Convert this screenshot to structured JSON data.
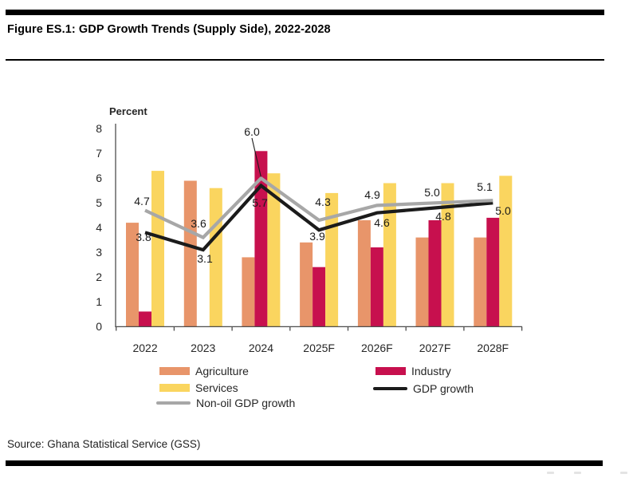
{
  "page": {
    "title": "Figure ES.1: GDP Growth Trends (Supply Side), 2022-2028",
    "source": "Source: Ghana Statistical Service (GSS)"
  },
  "chart_data": {
    "type": "bar",
    "subtype": "grouped-bars-with-overlaid-lines",
    "title": "GDP Growth Trends (Supply Side), 2022-2028",
    "axis_unit_label": "Percent",
    "categories": [
      "2022",
      "2023",
      "2024",
      "2025F",
      "2026F",
      "2027F",
      "2028F"
    ],
    "ylim": [
      0,
      8
    ],
    "y_ticks": [
      "0",
      "1",
      "2",
      "3",
      "4",
      "5",
      "6",
      "7",
      "8"
    ],
    "grid": false,
    "bar_series": [
      {
        "name": "Agriculture",
        "color": "#E8956A",
        "values": [
          4.2,
          5.9,
          2.8,
          3.4,
          4.3,
          3.6,
          3.6
        ]
      },
      {
        "name": "Industry",
        "color": "#C7104E",
        "values": [
          0.6,
          null,
          7.1,
          2.4,
          3.2,
          4.3,
          4.4
        ]
      },
      {
        "name": "Services",
        "color": "#FAD55F",
        "values": [
          6.3,
          5.6,
          6.2,
          5.4,
          5.8,
          5.8,
          6.1
        ]
      }
    ],
    "line_series": [
      {
        "name": "GDP growth",
        "color": "#1B1B1B",
        "values": [
          3.8,
          3.1,
          5.7,
          3.9,
          4.6,
          4.8,
          5.0
        ],
        "point_labels": [
          "3.8",
          "3.1",
          "5.7",
          "3.9",
          "4.6",
          "4.8",
          "5.0"
        ]
      },
      {
        "name": "Non-oil GDP growth",
        "color": "#A7A7A7",
        "values": [
          4.7,
          3.6,
          6.0,
          4.3,
          4.9,
          5.0,
          5.1
        ],
        "point_labels": [
          "4.7",
          "3.6",
          "6.0",
          "4.3",
          "4.9",
          "5.0",
          "5.1"
        ]
      }
    ],
    "annotation": {
      "text": "6.0",
      "target": "Non-oil GDP growth at 2024",
      "style": "callout with leader line"
    },
    "legend": {
      "position": "bottom",
      "items": [
        {
          "label": "Agriculture",
          "type": "bar",
          "color": "#E8956A"
        },
        {
          "label": "Industry",
          "type": "bar",
          "color": "#C7104E"
        },
        {
          "label": "Services",
          "type": "bar",
          "color": "#FAD55F"
        },
        {
          "label": "GDP growth",
          "type": "line",
          "color": "#1B1B1B"
        },
        {
          "label": "Non-oil GDP growth",
          "type": "line",
          "color": "#A7A7A7"
        }
      ]
    }
  }
}
